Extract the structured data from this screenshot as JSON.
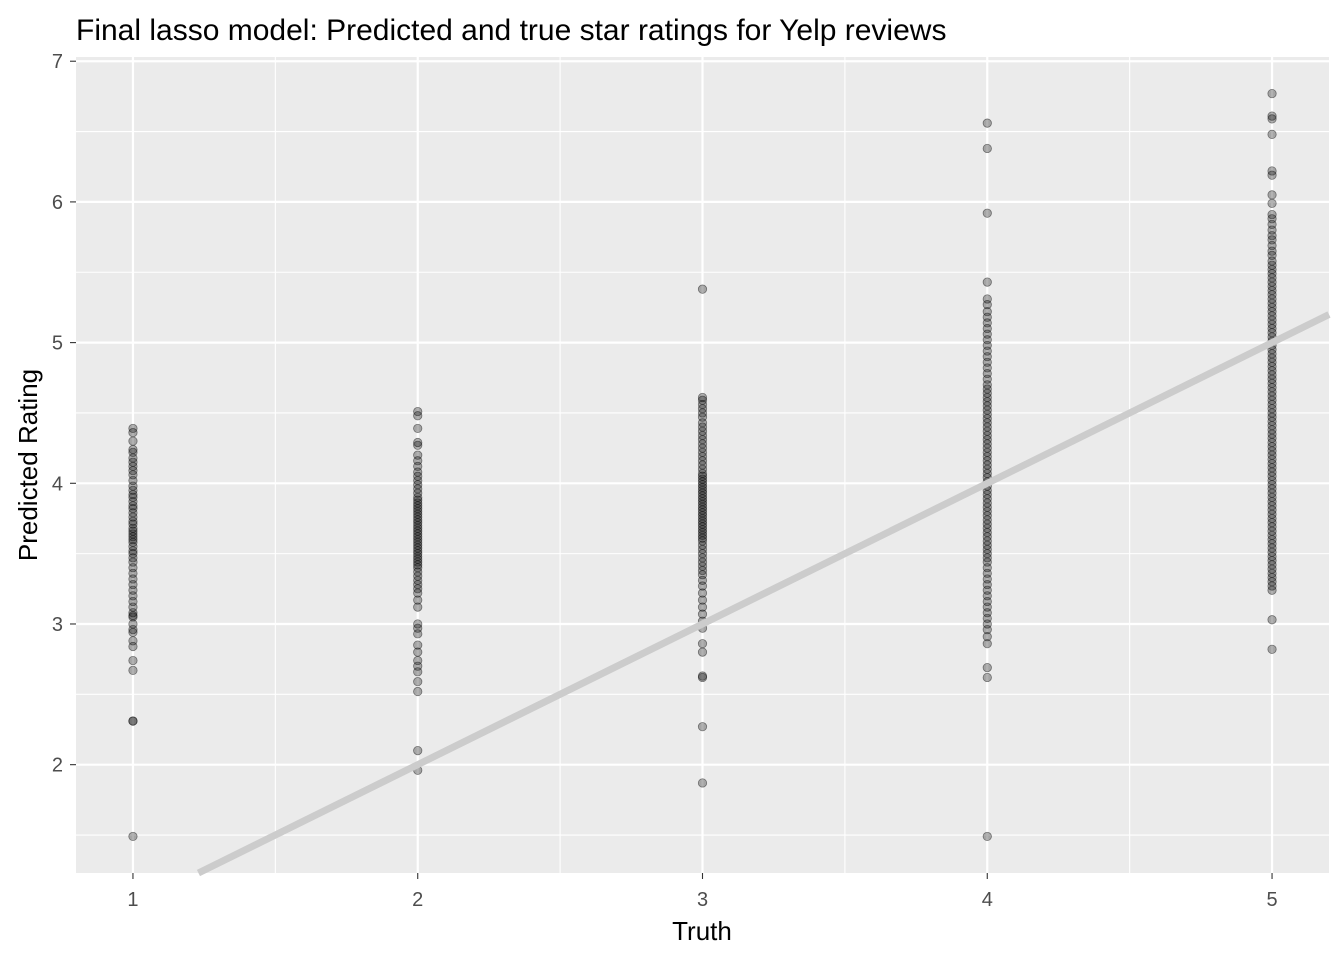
{
  "chart_data": {
    "type": "scatter",
    "title": "Final lasso model: Predicted and true star ratings for Yelp reviews",
    "xlabel": "Truth",
    "ylabel": "Predicted Rating",
    "xlim": [
      0.8,
      5.2
    ],
    "ylim": [
      1.23,
      7.03
    ],
    "x_ticks": [
      1,
      2,
      3,
      4,
      5
    ],
    "y_ticks": [
      2,
      3,
      4,
      5,
      6,
      7
    ],
    "grid": true,
    "legend": "none",
    "colors": {
      "panel_background": "#ebebeb",
      "grid": "#ffffff",
      "points": "#000000",
      "reference_line": "#cccccc"
    },
    "reference_line": {
      "slope": 1,
      "intercept": 0
    },
    "series": [
      {
        "x": 1,
        "y": [
          4.39,
          4.36,
          4.3,
          4.24,
          4.22,
          4.18,
          4.15,
          4.12,
          4.09,
          4.06,
          4.02,
          3.98,
          3.95,
          3.92,
          3.9,
          3.87,
          3.84,
          3.82,
          3.79,
          3.76,
          3.73,
          3.71,
          3.68,
          3.66,
          3.64,
          3.62,
          3.6,
          3.58,
          3.55,
          3.52,
          3.5,
          3.47,
          3.44,
          3.4,
          3.36,
          3.32,
          3.28,
          3.24,
          3.2,
          3.16,
          3.12,
          3.08,
          3.06,
          3.05,
          3.0,
          2.96,
          2.94,
          2.88,
          2.84,
          2.74,
          2.67,
          2.31,
          2.31,
          1.49
        ]
      },
      {
        "x": 2,
        "y": [
          4.51,
          4.48,
          4.39,
          4.29,
          4.27,
          4.2,
          4.16,
          4.12,
          4.08,
          4.05,
          4.02,
          3.99,
          3.96,
          3.93,
          3.9,
          3.88,
          3.86,
          3.84,
          3.82,
          3.8,
          3.78,
          3.76,
          3.74,
          3.72,
          3.7,
          3.68,
          3.66,
          3.64,
          3.62,
          3.6,
          3.58,
          3.56,
          3.54,
          3.52,
          3.5,
          3.48,
          3.46,
          3.44,
          3.42,
          3.4,
          3.37,
          3.34,
          3.31,
          3.28,
          3.25,
          3.22,
          3.17,
          3.12,
          3.0,
          2.97,
          2.93,
          2.85,
          2.8,
          2.74,
          2.7,
          2.66,
          2.59,
          2.52,
          2.1,
          1.96
        ]
      },
      {
        "x": 3,
        "y": [
          5.38,
          4.61,
          4.59,
          4.56,
          4.53,
          4.5,
          4.47,
          4.43,
          4.4,
          4.37,
          4.34,
          4.31,
          4.28,
          4.25,
          4.22,
          4.19,
          4.16,
          4.13,
          4.1,
          4.07,
          4.05,
          4.03,
          4.01,
          3.99,
          3.97,
          3.95,
          3.93,
          3.91,
          3.89,
          3.87,
          3.85,
          3.83,
          3.81,
          3.79,
          3.77,
          3.75,
          3.73,
          3.71,
          3.69,
          3.67,
          3.65,
          3.63,
          3.61,
          3.59,
          3.56,
          3.53,
          3.5,
          3.47,
          3.44,
          3.41,
          3.38,
          3.35,
          3.31,
          3.27,
          3.22,
          3.17,
          3.12,
          3.07,
          3.02,
          2.97,
          2.86,
          2.8,
          2.63,
          2.62,
          2.27,
          1.87
        ]
      },
      {
        "x": 4,
        "y": [
          6.56,
          6.38,
          5.92,
          5.43,
          5.31,
          5.27,
          5.22,
          5.18,
          5.14,
          5.1,
          5.06,
          5.02,
          4.98,
          4.94,
          4.9,
          4.86,
          4.82,
          4.78,
          4.74,
          4.7,
          4.67,
          4.64,
          4.61,
          4.58,
          4.55,
          4.52,
          4.49,
          4.46,
          4.43,
          4.4,
          4.37,
          4.34,
          4.31,
          4.28,
          4.25,
          4.22,
          4.19,
          4.16,
          4.13,
          4.1,
          4.07,
          4.04,
          4.01,
          3.98,
          3.95,
          3.92,
          3.89,
          3.86,
          3.83,
          3.8,
          3.77,
          3.74,
          3.71,
          3.68,
          3.65,
          3.62,
          3.59,
          3.56,
          3.53,
          3.5,
          3.47,
          3.44,
          3.4,
          3.36,
          3.32,
          3.28,
          3.24,
          3.2,
          3.16,
          3.12,
          3.08,
          3.04,
          3.0,
          2.96,
          2.91,
          2.86,
          2.69,
          2.62,
          1.49
        ]
      },
      {
        "x": 5,
        "y": [
          6.77,
          6.61,
          6.59,
          6.48,
          6.22,
          6.19,
          6.05,
          5.99,
          5.91,
          5.88,
          5.84,
          5.8,
          5.76,
          5.73,
          5.69,
          5.65,
          5.62,
          5.58,
          5.55,
          5.52,
          5.49,
          5.46,
          5.43,
          5.4,
          5.37,
          5.34,
          5.31,
          5.28,
          5.25,
          5.22,
          5.19,
          5.16,
          5.13,
          5.1,
          5.07,
          5.04,
          5.01,
          4.98,
          4.95,
          4.92,
          4.89,
          4.86,
          4.83,
          4.8,
          4.77,
          4.74,
          4.71,
          4.68,
          4.65,
          4.62,
          4.59,
          4.56,
          4.53,
          4.5,
          4.47,
          4.44,
          4.41,
          4.38,
          4.35,
          4.32,
          4.29,
          4.26,
          4.23,
          4.2,
          4.17,
          4.14,
          4.11,
          4.08,
          4.05,
          4.02,
          3.99,
          3.96,
          3.93,
          3.9,
          3.87,
          3.84,
          3.81,
          3.78,
          3.75,
          3.72,
          3.69,
          3.66,
          3.63,
          3.6,
          3.57,
          3.54,
          3.51,
          3.48,
          3.45,
          3.42,
          3.39,
          3.36,
          3.33,
          3.3,
          3.27,
          3.24,
          3.03,
          2.82
        ]
      }
    ]
  }
}
